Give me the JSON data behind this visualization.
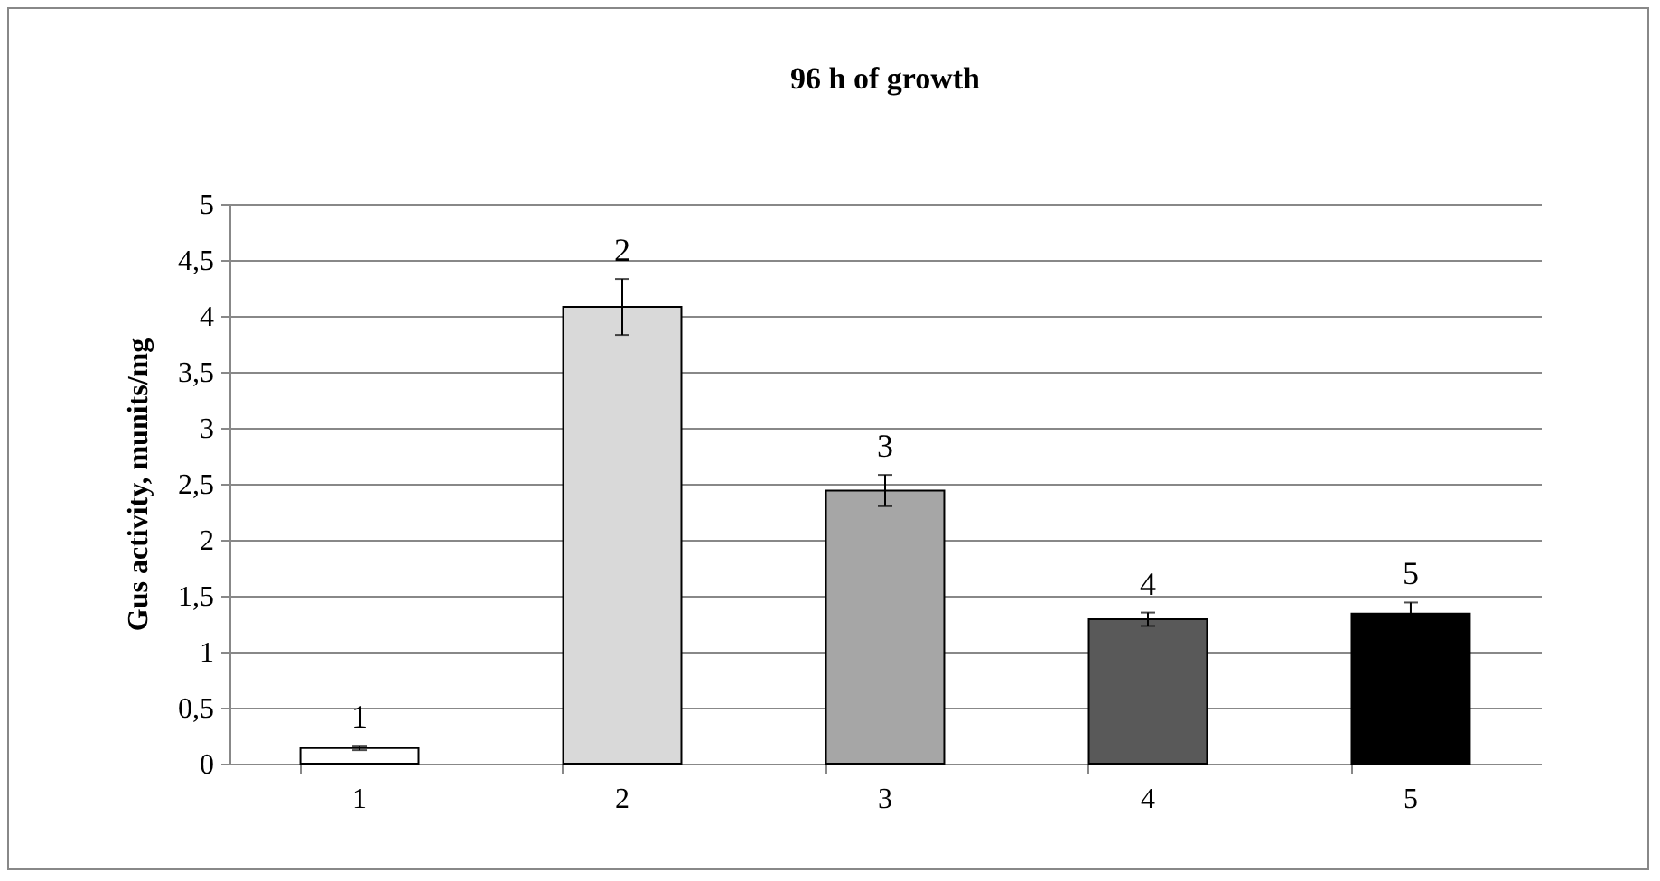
{
  "chart_data": {
    "type": "bar",
    "title": "96 h of growth",
    "ylabel": "Gus activity,  munits/mg",
    "categories": [
      "1",
      "2",
      "3",
      "4",
      "5"
    ],
    "values": [
      0.14,
      4.08,
      2.44,
      1.29,
      1.34
    ],
    "colors": [
      "#ffffff",
      "#d9d9d9",
      "#a6a6a6",
      "#595959",
      "#000000"
    ],
    "errors": [
      0.02,
      0.25,
      0.14,
      0.06,
      0.1
    ],
    "ylim": [
      0,
      5
    ],
    "yticks": [
      0,
      {
        "value": 0.5,
        "label": "0,5"
      },
      1,
      {
        "value": 1.5,
        "label": "1,5"
      },
      2,
      {
        "value": 2.5,
        "label": "2,5"
      },
      3,
      {
        "value": 3.5,
        "label": "3,5"
      },
      4,
      {
        "value": 4.5,
        "label": "4,5"
      },
      5
    ],
    "grid": "y",
    "annotations": [
      "1",
      "2",
      "3",
      "4",
      "5"
    ]
  }
}
